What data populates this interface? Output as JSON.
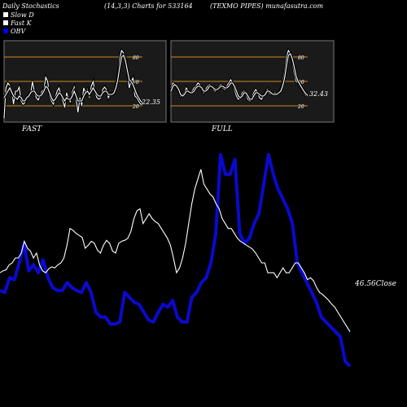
{
  "header": {
    "title": "Daily Stochastics",
    "params": "(14,3,3) Charts for 533164",
    "company_site": "(TEXMO PIPES) munafasutra.com"
  },
  "legend": [
    {
      "label": "Slow  D",
      "swatch": "#ffffff",
      "marker": "square"
    },
    {
      "label": "Fast K",
      "swatch": "#ffffff",
      "marker": "square"
    },
    {
      "label": "OBV",
      "swatch": "#0000ff",
      "marker": "circle"
    }
  ],
  "colors": {
    "background": "#000000",
    "panel_bg": "#1a1a1a",
    "panel_border": "#777777",
    "level_line": "#c88a1e",
    "stoch_line": "#ffffff",
    "obv_line": "#0a0acd",
    "close_line": "#ffffff",
    "text": "#ffffff"
  },
  "chart_data": [
    {
      "type": "line",
      "title": "FAST",
      "ylim": [
        0,
        100
      ],
      "levels": [
        20,
        50,
        80
      ],
      "level_labels": [
        "20",
        "50",
        "80"
      ],
      "last_value_label": "22.35",
      "series": [
        {
          "values": [
            5,
            42,
            48,
            45,
            40,
            22,
            38,
            38,
            43,
            26,
            22,
            24,
            30,
            34,
            35,
            50,
            37,
            30,
            27,
            32,
            38,
            40,
            55,
            50,
            32,
            26,
            22,
            30,
            38,
            42,
            33,
            26,
            18,
            36,
            28,
            25,
            37,
            43,
            28,
            12,
            30,
            20,
            42,
            36,
            40,
            30,
            44,
            50,
            36,
            30,
            28,
            30,
            40,
            43,
            40,
            30,
            35,
            34,
            35,
            45,
            55,
            78,
            88,
            85,
            80,
            64,
            42,
            50,
            54,
            32,
            30,
            26,
            22,
            22
          ]
        },
        {
          "values": [
            30,
            34,
            38,
            42,
            37,
            32,
            30,
            28,
            32,
            30,
            26,
            26,
            30,
            32,
            36,
            38,
            38,
            34,
            32,
            32,
            34,
            38,
            44,
            42,
            36,
            30,
            26,
            28,
            32,
            36,
            34,
            30,
            26,
            30,
            28,
            28,
            32,
            38,
            32,
            26,
            26,
            26,
            32,
            36,
            38,
            34,
            38,
            42,
            38,
            34,
            32,
            32,
            36,
            38,
            38,
            34,
            34,
            34,
            36,
            42,
            52,
            68,
            80,
            82,
            76,
            64,
            52,
            50,
            46,
            40,
            34,
            30,
            26,
            24
          ]
        }
      ]
    },
    {
      "type": "line",
      "title": "FULL",
      "ylim": [
        0,
        100
      ],
      "levels": [
        20,
        50,
        80
      ],
      "level_labels": [
        "20",
        "50",
        "80"
      ],
      "last_value_label": "32.43",
      "series": [
        {
          "values": [
            42,
            48,
            46,
            42,
            38,
            32,
            34,
            36,
            42,
            38,
            36,
            38,
            42,
            44,
            48,
            46,
            40,
            36,
            40,
            44,
            46,
            44,
            40,
            38,
            40,
            44,
            46,
            42,
            40,
            44,
            48,
            52,
            48,
            40,
            32,
            28,
            30,
            36,
            38,
            34,
            28,
            26,
            30,
            36,
            40,
            36,
            30,
            28,
            32,
            36,
            40,
            36,
            34,
            34,
            36,
            34,
            36,
            40,
            48,
            62,
            80,
            88,
            84,
            74,
            60,
            50,
            48,
            44,
            40,
            36,
            33,
            32
          ]
        },
        {
          "values": [
            38,
            44,
            46,
            44,
            40,
            34,
            32,
            34,
            38,
            38,
            36,
            36,
            38,
            42,
            44,
            44,
            42,
            38,
            38,
            40,
            44,
            44,
            42,
            40,
            40,
            42,
            44,
            44,
            42,
            42,
            44,
            48,
            48,
            44,
            38,
            32,
            30,
            32,
            36,
            36,
            32,
            28,
            28,
            32,
            36,
            36,
            34,
            32,
            32,
            34,
            38,
            38,
            36,
            34,
            34,
            34,
            36,
            38,
            44,
            54,
            70,
            82,
            84,
            78,
            68,
            56,
            50,
            46,
            42,
            38,
            35,
            33
          ]
        }
      ]
    },
    {
      "type": "line",
      "title": "",
      "last_value_label": "46.56Close",
      "series": [
        {
          "name": "OBV",
          "values": [
            272,
            270,
            285,
            283,
            300,
            320,
            292,
            298,
            290,
            303,
            285,
            275,
            272,
            272,
            280,
            275,
            272,
            270,
            280,
            270,
            250,
            245,
            245,
            238,
            238,
            240,
            270,
            265,
            260,
            258,
            250,
            242,
            240,
            250,
            258,
            255,
            262,
            245,
            240,
            240,
            265,
            270,
            280,
            285,
            300,
            330,
            410,
            390,
            390,
            405,
            330,
            320,
            325,
            340,
            350,
            380,
            410,
            390,
            375,
            365,
            355,
            340,
            300,
            290,
            280,
            270,
            260,
            245,
            240,
            235,
            230,
            225,
            200,
            195
          ]
        },
        {
          "name": "Close",
          "values": [
            290,
            292,
            293,
            298,
            300,
            305,
            305,
            310,
            322,
            315,
            312,
            305,
            310,
            298,
            292,
            290,
            294,
            296,
            295,
            298,
            300,
            305,
            318,
            335,
            333,
            330,
            328,
            326,
            315,
            318,
            322,
            320,
            313,
            310,
            318,
            323,
            320,
            312,
            310,
            320,
            322,
            323,
            325,
            332,
            345,
            353,
            355,
            340,
            345,
            350,
            345,
            342,
            340,
            335,
            330,
            325,
            318,
            305,
            290,
            295,
            305,
            320,
            340,
            360,
            375,
            385,
            395,
            380,
            375,
            370,
            367,
            360,
            355,
            345,
            340,
            335,
            335,
            330,
            325,
            322,
            320,
            318,
            316,
            314,
            310,
            305,
            300,
            300,
            290,
            290,
            290,
            285,
            290,
            295,
            290,
            290,
            295,
            300,
            300,
            295,
            290,
            283,
            285,
            282,
            275,
            270,
            268,
            265,
            262,
            258,
            255,
            250,
            245,
            240,
            235,
            230
          ]
        }
      ]
    }
  ]
}
